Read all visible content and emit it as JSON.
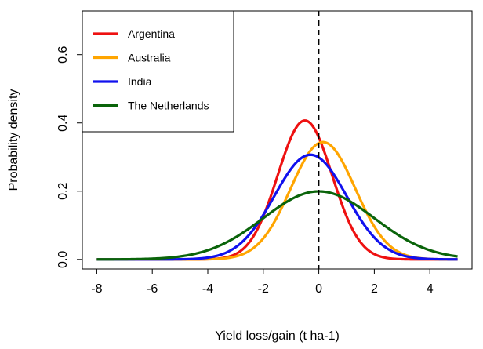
{
  "chart_data": {
    "type": "line",
    "title": "",
    "xlabel": "Yield loss/gain (t ha-1)",
    "ylabel": "Probability density",
    "xlim": [
      -8,
      5
    ],
    "ylim": [
      0,
      0.7
    ],
    "xticks": [
      -8,
      -6,
      -4,
      -2,
      0,
      2,
      4
    ],
    "yticks": [
      0.0,
      0.2,
      0.4,
      0.6
    ],
    "ytick_labels": [
      "0.0",
      "0.2",
      "0.4",
      "0.6"
    ],
    "reference_line": {
      "x": 0,
      "style": "dashed",
      "color": "#000000"
    },
    "grid": false,
    "legend_position": "top-left",
    "series": [
      {
        "name": "Argentina",
        "color": "#ee1111",
        "mean": -0.5,
        "sd": 0.98
      },
      {
        "name": "Australia",
        "color": "#ffa500",
        "mean": 0.15,
        "sd": 1.16
      },
      {
        "name": "India",
        "color": "#1111ee",
        "mean": -0.3,
        "sd": 1.3
      },
      {
        "name": "The Netherlands",
        "color": "#0a640a",
        "mean": 0.0,
        "sd": 2.0
      }
    ]
  }
}
